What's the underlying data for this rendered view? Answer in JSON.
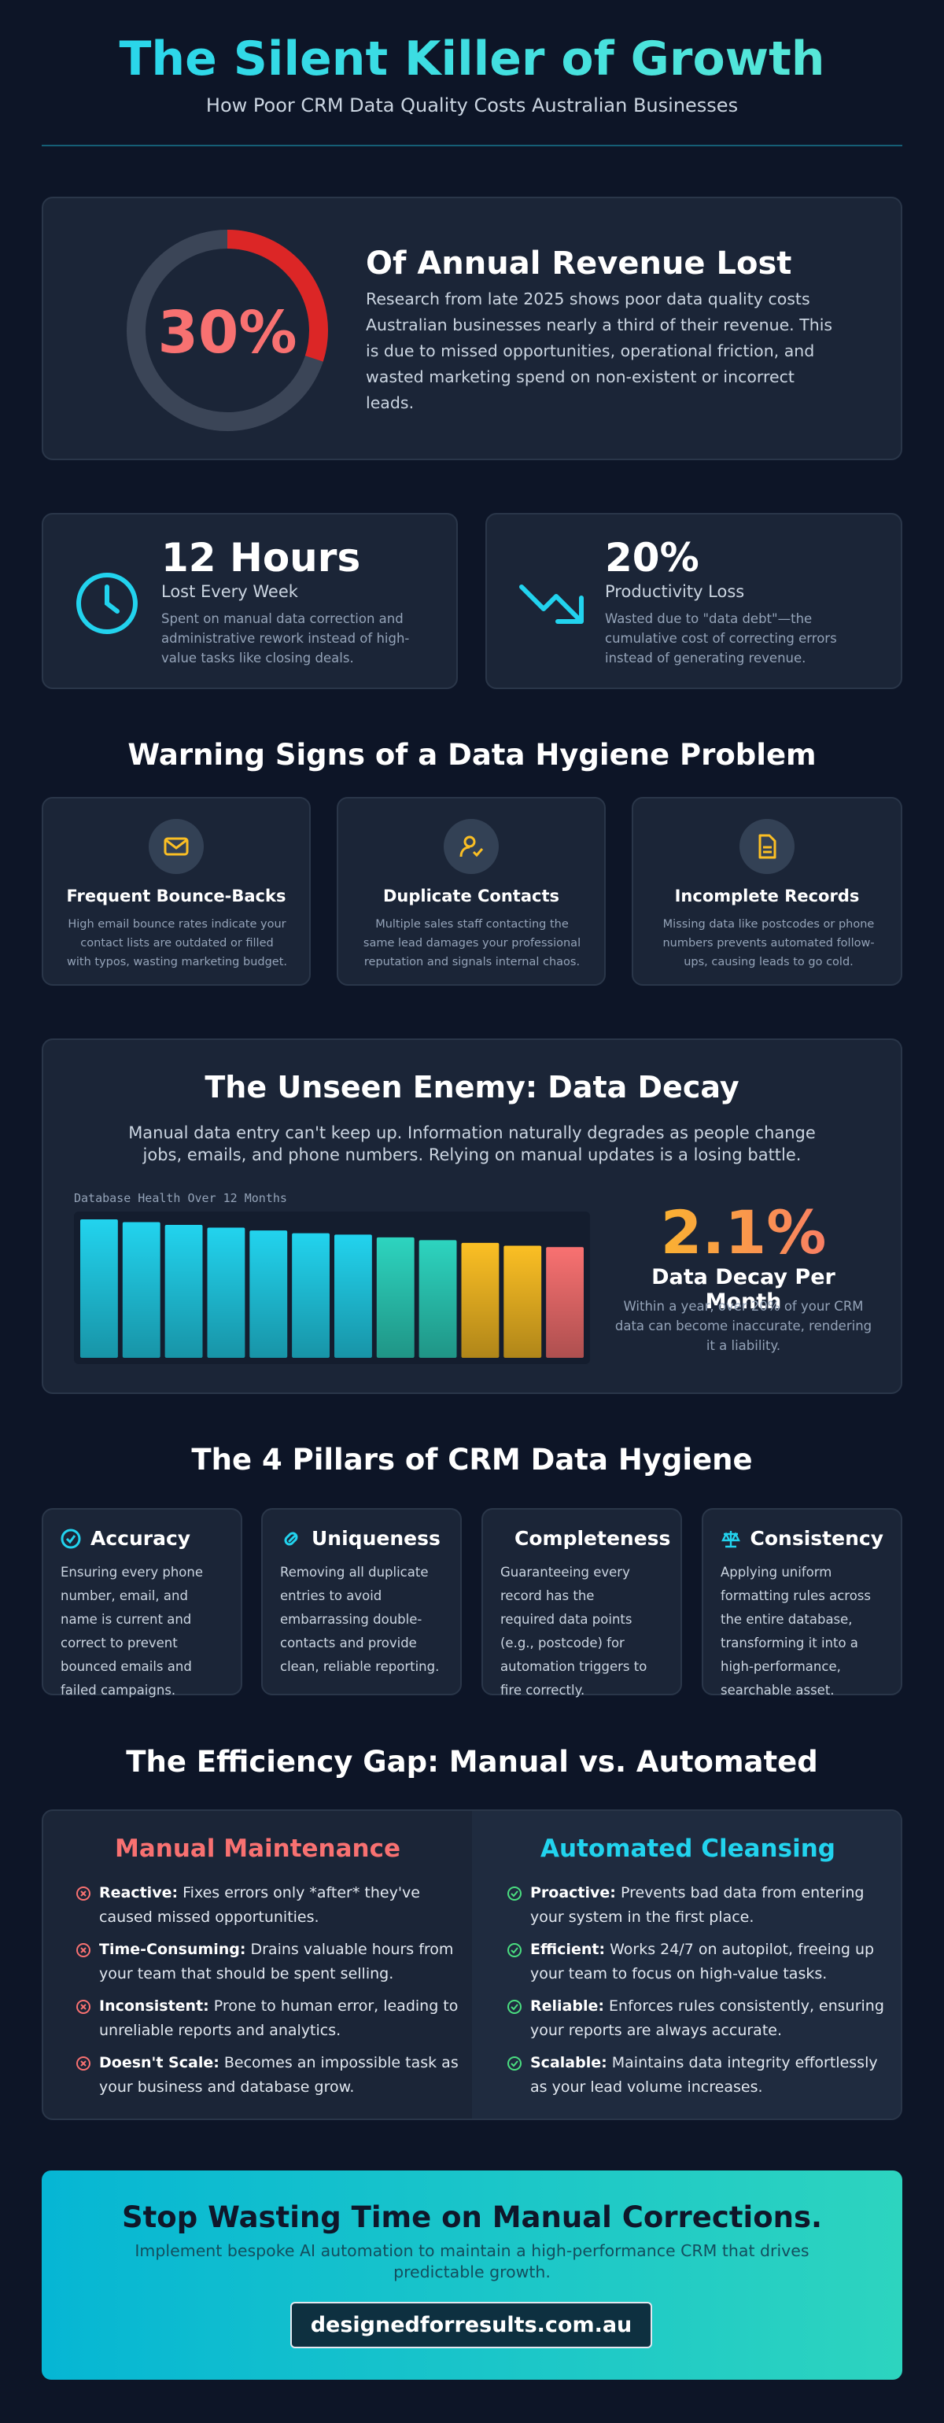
{
  "header": {
    "title": "The Silent Killer of Growth",
    "subtitle": "How Poor CRM Data Quality Costs Australian Businesses"
  },
  "hero": {
    "stat": {
      "value": 30,
      "label": "30%"
    },
    "heading": "Of Annual Revenue Lost",
    "text": "Research from late 2025 shows poor data quality costs Australian businesses nearly a third of their revenue. This is due to missed opportunities, operational friction, and wasted marketing spend on non-existent or incorrect leads."
  },
  "stats": [
    {
      "value": "12 Hours",
      "label": "Lost Every Week",
      "text": "Spent on manual data correction and administrative rework instead of high-value tasks like closing deals."
    },
    {
      "value": "20%",
      "label": "Productivity Loss",
      "text": "Wasted due to \"data debt\"—the cumulative cost of correcting errors instead of generating revenue."
    }
  ],
  "warning": {
    "title": "Warning Signs of a Data Hygiene Problem",
    "cards": [
      {
        "title": "Frequent Bounce-Backs",
        "text": "High email bounce rates indicate your contact lists are outdated or filled with typos, wasting marketing budget."
      },
      {
        "title": "Duplicate Contacts",
        "text": "Multiple sales staff contacting the same lead damages your professional reputation and signals internal chaos."
      },
      {
        "title": "Incomplete Records",
        "text": "Missing data like postcodes or phone numbers prevents automated follow-ups, causing leads to go cold."
      }
    ]
  },
  "decay": {
    "title": "The Unseen Enemy: Data Decay",
    "text": "Manual data entry can't keep up. Information naturally degrades as people change jobs, emails, and phone numbers. Relying on manual updates is a losing battle.",
    "stat": "2.1%",
    "stat_label": "Data Decay Per Month",
    "stat_text": "Within a year, over 20% of your CRM data can become inaccurate, rendering it a liability.",
    "chart_data": {
      "type": "bar",
      "title": "Database Health Over 12 Months",
      "values": [
        100,
        98,
        96,
        94,
        92,
        90,
        89,
        87,
        85,
        83,
        81,
        80
      ],
      "colors": [
        "#22d3ee",
        "#22d3ee",
        "#22d3ee",
        "#22d3ee",
        "#22d3ee",
        "#22d3ee",
        "#22d3ee",
        "#2dd4bf",
        "#2dd4bf",
        "#fbbf24",
        "#fbbf24",
        "#f87171"
      ]
    }
  },
  "pillars": {
    "title": "The 4 Pillars of CRM Data Hygiene",
    "cards": [
      {
        "title": "Accuracy",
        "text": "Ensuring every phone number, email, and name is current and correct to prevent bounced emails and failed campaigns."
      },
      {
        "title": "Uniqueness",
        "text": "Removing all duplicate entries to avoid embarrassing double-contacts and provide clean, reliable reporting."
      },
      {
        "title": "Completeness",
        "text": "Guaranteeing every record has the required data points (e.g., postcode) for automation triggers to fire correctly."
      },
      {
        "title": "Consistency",
        "text": "Applying uniform formatting rules across the entire database, transforming it into a high-performance, searchable asset."
      }
    ]
  },
  "gap": {
    "title": "The Efficiency Gap: Manual vs. Automated",
    "manual": {
      "title": "Manual Maintenance",
      "items": [
        {
          "label": "Reactive:",
          "text": "Fixes errors only *after* they've caused missed opportunities."
        },
        {
          "label": "Time-Consuming:",
          "text": "Drains valuable hours from your team that should be spent selling."
        },
        {
          "label": "Inconsistent:",
          "text": "Prone to human error, leading to unreliable reports and analytics."
        },
        {
          "label": "Doesn't Scale:",
          "text": "Becomes an impossible task as your business and database grow."
        }
      ]
    },
    "automated": {
      "title": "Automated Cleansing",
      "items": [
        {
          "label": "Proactive:",
          "text": "Prevents bad data from entering your system in the first place."
        },
        {
          "label": "Efficient:",
          "text": "Works 24/7 on autopilot, freeing up your team to focus on high-value tasks."
        },
        {
          "label": "Reliable:",
          "text": "Enforces rules consistently, ensuring your reports are always accurate."
        },
        {
          "label": "Scalable:",
          "text": "Maintains data integrity effortlessly as your lead volume increases."
        }
      ]
    }
  },
  "cta": {
    "title": "Stop Wasting Time on Manual Corrections.",
    "text": "Implement bespoke AI automation to maintain a high-performance CRM that drives predictable growth.",
    "button": "designedforresults.com.au"
  }
}
